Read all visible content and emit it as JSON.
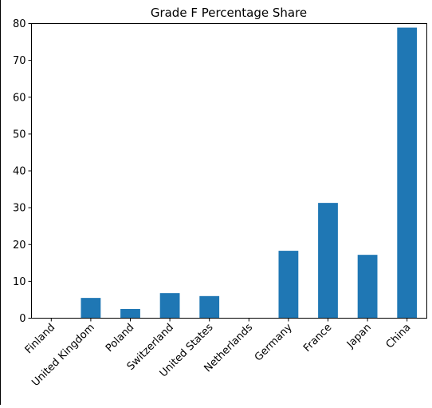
{
  "chart_data": {
    "type": "bar",
    "title": "Grade F Percentage Share",
    "xlabel": "",
    "ylabel": "",
    "categories": [
      "Finland",
      "United Kingdom",
      "Poland",
      "Switzerland",
      "United States",
      "Netherlands",
      "Germany",
      "France",
      "Japan",
      "China"
    ],
    "values": [
      0,
      5.5,
      2.5,
      6.8,
      6.0,
      0,
      18.3,
      31.3,
      17.2,
      78.9
    ],
    "ylim": [
      0,
      80
    ],
    "yticks": [
      0,
      10,
      20,
      30,
      40,
      50,
      60,
      70,
      80
    ],
    "grid": false,
    "legend": "none",
    "bar_color": "#1f77b4",
    "x_tick_rotation_deg": 45
  }
}
